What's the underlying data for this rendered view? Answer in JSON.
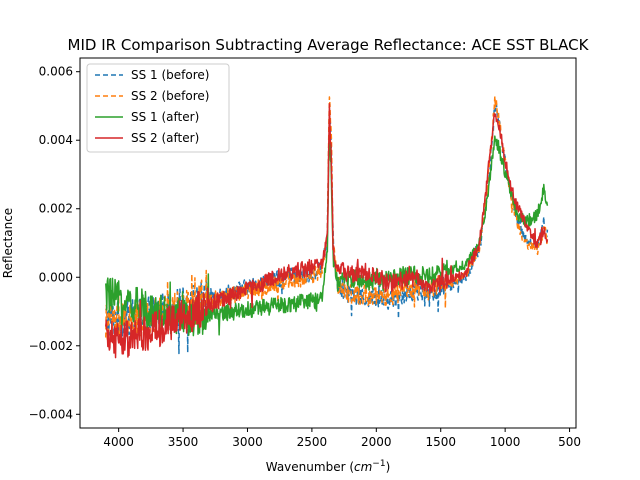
{
  "chart_data": {
    "type": "line",
    "title": "MID IR Comparison Subtracting Average Reflectance: ACE SST BLACK",
    "xlabel_prefix": "Wavenumber (",
    "xlabel_unit": "cm",
    "xlabel_sup": "−1",
    "xlabel_suffix": ")",
    "ylabel": "Reflectance",
    "xlim": [
      4300,
      450
    ],
    "ylim": [
      -0.0044,
      0.0064
    ],
    "x_reversed": true,
    "xticks": [
      4000,
      3500,
      3000,
      2500,
      2000,
      1500,
      1000,
      500
    ],
    "xtick_labels": [
      "4000",
      "3500",
      "3000",
      "2500",
      "2000",
      "1500",
      "1000",
      "500"
    ],
    "yticks": [
      -0.004,
      -0.002,
      0.0,
      0.002,
      0.004,
      0.006
    ],
    "ytick_labels": [
      "−0.004",
      "−0.002",
      "0.000",
      "0.002",
      "0.004",
      "0.006"
    ],
    "legend_position": "top-left",
    "grid": false,
    "series": [
      {
        "name": "SS 1 (before)",
        "color": "#1f77b4",
        "dashed": true,
        "x": [
          4100,
          3900,
          3700,
          3500,
          3300,
          3100,
          2900,
          2700,
          2500,
          2420,
          2380,
          2365,
          2350,
          2335,
          2300,
          2250,
          2200,
          2100,
          2000,
          1900,
          1800,
          1700,
          1600,
          1500,
          1400,
          1300,
          1200,
          1150,
          1100,
          1080,
          1050,
          1000,
          950,
          900,
          850,
          800,
          750,
          700,
          670
        ],
        "y": [
          -0.0012,
          -0.0012,
          -0.001,
          -0.0008,
          -0.0006,
          -0.0004,
          -0.0002,
          0.0,
          0.0001,
          0.0003,
          0.0012,
          0.005,
          0.004,
          0.001,
          -0.0002,
          -0.0004,
          -0.0005,
          -0.0006,
          -0.0006,
          -0.0007,
          -0.0005,
          -0.0004,
          -0.0005,
          -0.0003,
          -0.0002,
          0.0,
          0.0008,
          0.002,
          0.004,
          0.005,
          0.0046,
          0.0033,
          0.0024,
          0.0016,
          0.0012,
          0.001,
          0.0009,
          0.0016,
          0.0012
        ]
      },
      {
        "name": "SS 2 (before)",
        "color": "#ff7f0e",
        "dashed": true,
        "x": [
          4100,
          3900,
          3700,
          3500,
          3300,
          3100,
          2900,
          2700,
          2500,
          2420,
          2380,
          2365,
          2350,
          2335,
          2300,
          2250,
          2200,
          2100,
          2000,
          1900,
          1800,
          1700,
          1600,
          1500,
          1400,
          1300,
          1200,
          1150,
          1100,
          1080,
          1050,
          1000,
          950,
          900,
          850,
          800,
          750,
          700,
          670
        ],
        "y": [
          -0.0013,
          -0.0013,
          -0.0011,
          -0.0009,
          -0.0007,
          -0.0005,
          -0.0003,
          -0.0001,
          0.0,
          0.0002,
          0.0012,
          0.0055,
          0.0042,
          0.001,
          -0.0002,
          -0.0004,
          -0.0005,
          -0.0005,
          -0.0006,
          -0.0006,
          -0.0004,
          -0.0003,
          -0.0004,
          -0.0002,
          -0.0001,
          0.0001,
          0.0009,
          0.0022,
          0.0042,
          0.0052,
          0.0047,
          0.0033,
          0.0023,
          0.0015,
          0.0011,
          0.0009,
          0.0008,
          0.0014,
          0.0011
        ]
      },
      {
        "name": "SS 1 (after)",
        "color": "#2ca02c",
        "dashed": false,
        "x": [
          4100,
          3900,
          3700,
          3500,
          3300,
          3100,
          2900,
          2700,
          2500,
          2420,
          2380,
          2365,
          2350,
          2335,
          2300,
          2250,
          2200,
          2100,
          2000,
          1900,
          1800,
          1700,
          1600,
          1500,
          1400,
          1300,
          1200,
          1150,
          1100,
          1080,
          1050,
          1000,
          950,
          900,
          850,
          800,
          750,
          700,
          670
        ],
        "y": [
          -0.0005,
          -0.0008,
          -0.001,
          -0.0012,
          -0.0011,
          -0.001,
          -0.0009,
          -0.0008,
          -0.0007,
          -0.0006,
          0.0008,
          0.0045,
          0.003,
          0.0005,
          -0.0002,
          -0.0001,
          0.0,
          -0.0001,
          -0.0001,
          -0.0001,
          0.0,
          0.0001,
          0.0,
          0.0001,
          0.0002,
          0.0004,
          0.001,
          0.002,
          0.0035,
          0.004,
          0.0038,
          0.003,
          0.0024,
          0.0018,
          0.0016,
          0.0017,
          0.0018,
          0.0026,
          0.002
        ]
      },
      {
        "name": "SS 2 (after)",
        "color": "#d62728",
        "dashed": false,
        "x": [
          4100,
          3900,
          3700,
          3500,
          3300,
          3100,
          2900,
          2700,
          2500,
          2420,
          2380,
          2365,
          2350,
          2335,
          2300,
          2250,
          2200,
          2100,
          2000,
          1900,
          1800,
          1700,
          1600,
          1500,
          1400,
          1300,
          1200,
          1150,
          1100,
          1080,
          1050,
          1000,
          950,
          900,
          850,
          800,
          750,
          700,
          670
        ],
        "y": [
          -0.0018,
          -0.0018,
          -0.0015,
          -0.0012,
          -0.0008,
          -0.0005,
          -0.0002,
          0.0001,
          0.0003,
          0.0004,
          0.0012,
          0.0048,
          0.0036,
          0.0008,
          0.0001,
          0.0002,
          0.0001,
          0.0001,
          0.0,
          -0.0002,
          -0.0001,
          0.0,
          -0.0002,
          -0.0002,
          0.0,
          0.0001,
          0.001,
          0.0025,
          0.0042,
          0.0048,
          0.0045,
          0.0034,
          0.0026,
          0.002,
          0.0016,
          0.0012,
          0.001,
          0.0013,
          0.0011
        ]
      }
    ]
  }
}
